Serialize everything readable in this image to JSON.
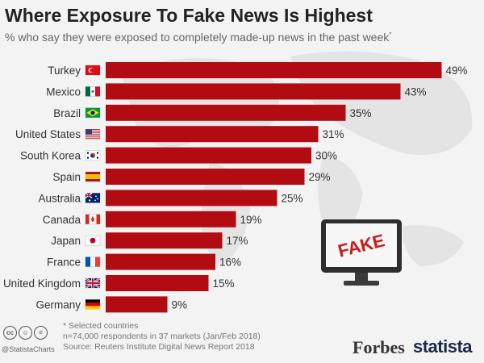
{
  "title": "Where Exposure To Fake News Is Highest",
  "subtitle": "% who say they were exposed to completely made-up news in the past week",
  "subtitle_mark": "*",
  "chart_data": {
    "type": "bar",
    "orientation": "horizontal",
    "categories": [
      "Turkey",
      "Mexico",
      "Brazil",
      "United States",
      "South Korea",
      "Spain",
      "Australia",
      "Canada",
      "Japan",
      "France",
      "United Kingdom",
      "Germany"
    ],
    "values": [
      49,
      43,
      35,
      31,
      30,
      29,
      25,
      19,
      17,
      16,
      15,
      9
    ],
    "value_labels": [
      "49%",
      "43%",
      "35%",
      "31%",
      "30%",
      "29%",
      "25%",
      "19%",
      "17%",
      "16%",
      "15%",
      "9%"
    ],
    "bar_color": "#b20b12",
    "xlim": [
      0,
      50
    ],
    "grid": false
  },
  "flags": [
    "flag-turkey-icon",
    "flag-mexico-icon",
    "flag-brazil-icon",
    "flag-united-states-icon",
    "flag-south-korea-icon",
    "flag-spain-icon",
    "flag-australia-icon",
    "flag-canada-icon",
    "flag-japan-icon",
    "flag-france-icon",
    "flag-united-kingdom-icon",
    "flag-germany-icon"
  ],
  "illustration": {
    "screen_text": "FAKE",
    "icon": "monitor-icon"
  },
  "footer": {
    "note": "* Selected countries",
    "sample": "n=74,000 respondents in 37 markets (Jan/Feb 2018)",
    "source": "Source: Reuters Institute Digital News Report 2018",
    "handle": "@StatistaCharts",
    "license_icons": [
      "cc-icon",
      "by-icon",
      "nd-icon"
    ]
  },
  "brands": {
    "forbes": "Forbes",
    "statista": "statista"
  }
}
